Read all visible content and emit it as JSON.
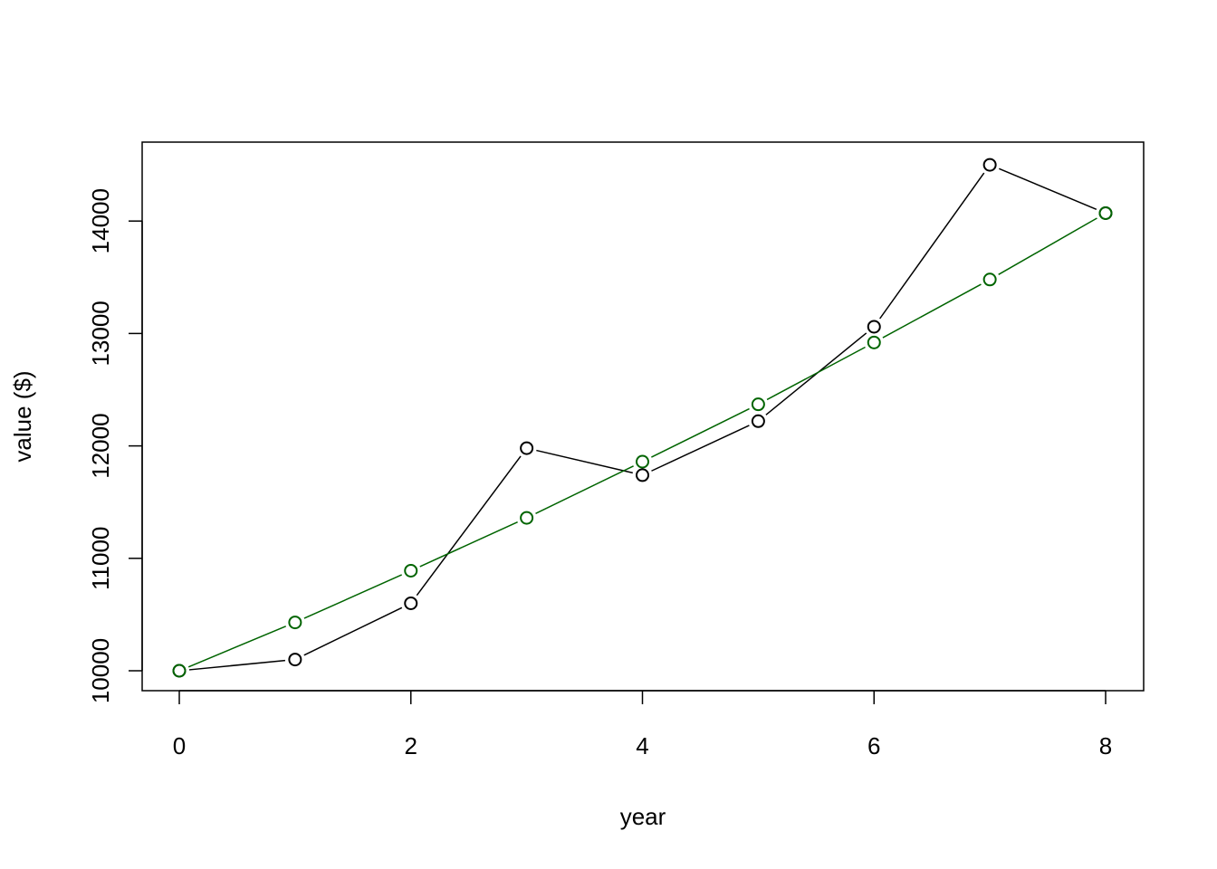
{
  "chart_data": {
    "type": "line",
    "xlabel": "year",
    "ylabel": "value ($)",
    "xlim": [
      0,
      8
    ],
    "ylim": [
      10000,
      14500
    ],
    "x_ticks": [
      0,
      2,
      4,
      6,
      8
    ],
    "y_ticks": [
      10000,
      11000,
      12000,
      13000,
      14000
    ],
    "grid": false,
    "x": [
      0,
      1,
      2,
      3,
      4,
      5,
      6,
      7,
      8
    ],
    "series": [
      {
        "color": "#000000",
        "marker": "open-circle",
        "values": [
          10000,
          10100,
          10600,
          11980,
          11740,
          12220,
          13060,
          14500,
          14070
        ]
      },
      {
        "color": "#006400",
        "marker": "open-circle",
        "values": [
          10000,
          10430,
          10890,
          11360,
          11860,
          12370,
          12920,
          13480,
          14070
        ]
      }
    ]
  }
}
